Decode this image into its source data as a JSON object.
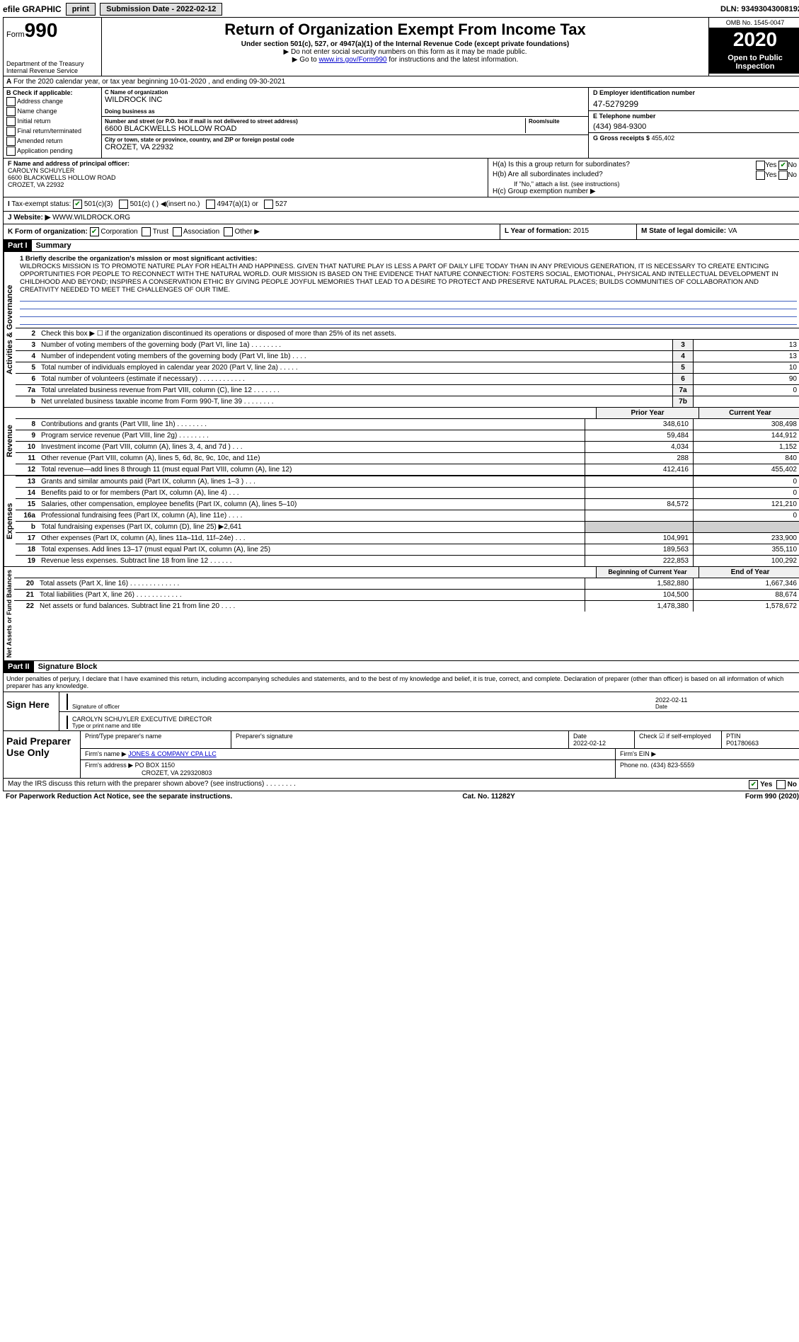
{
  "topbar": {
    "efile": "efile GRAPHIC",
    "print": "print",
    "submission": "Submission Date - 2022-02-12",
    "dln": "DLN: 93493043008192"
  },
  "header": {
    "form_prefix": "Form",
    "form_number": "990",
    "dept": "Department of the Treasury\nInternal Revenue Service",
    "title": "Return of Organization Exempt From Income Tax",
    "sub1": "Under section 501(c), 527, or 4947(a)(1) of the Internal Revenue Code (except private foundations)",
    "sub2": "▶ Do not enter social security numbers on this form as it may be made public.",
    "sub3_pre": "▶ Go to ",
    "sub3_link": "www.irs.gov/Form990",
    "sub3_post": " for instructions and the latest information.",
    "omb": "OMB No. 1545-0047",
    "year": "2020",
    "inspection": "Open to Public Inspection"
  },
  "rowA": "For the 2020 calendar year, or tax year beginning 10-01-2020    , and ending 09-30-2021",
  "colB": {
    "header": "B Check if applicable:",
    "items": [
      "Address change",
      "Name change",
      "Initial return",
      "Final return/terminated",
      "Amended return",
      "Application pending"
    ]
  },
  "colC": {
    "name_lbl": "C Name of organization",
    "name": "WILDROCK INC",
    "dba_lbl": "Doing business as",
    "dba": "",
    "addr_lbl": "Number and street (or P.O. box if mail is not delivered to street address)",
    "addr": "6600 BLACKWELLS HOLLOW ROAD",
    "room_lbl": "Room/suite",
    "city_lbl": "City or town, state or province, country, and ZIP or foreign postal code",
    "city": "CROZET, VA  22932"
  },
  "colD": {
    "d_lbl": "D Employer identification number",
    "d_val": "47-5279299",
    "e_lbl": "E Telephone number",
    "e_val": "(434) 984-9300",
    "g_lbl": "G Gross receipts $",
    "g_val": "455,402"
  },
  "rowF": {
    "lbl": "F  Name and address of principal officer:",
    "name": "CAROLYN SCHUYLER",
    "addr1": "6600 BLACKWELLS HOLLOW ROAD",
    "addr2": "CROZET, VA  22932"
  },
  "rowH": {
    "ha": "H(a)  Is this a group return for subordinates?",
    "hb": "H(b)  Are all subordinates included?",
    "hb_note": "If \"No,\" attach a list. (see instructions)",
    "hc": "H(c)  Group exemption number ▶",
    "yes": "Yes",
    "no": "No"
  },
  "rowI": {
    "lbl": "Tax-exempt status:",
    "opt1": "501(c)(3)",
    "opt2": "501(c) (  ) ◀(insert no.)",
    "opt3": "4947(a)(1) or",
    "opt4": "527"
  },
  "rowJ": {
    "lbl": "J  Website: ▶",
    "val": "WWW.WILDROCK.ORG"
  },
  "rowK": {
    "lbl": "K Form of organization:",
    "opts": [
      "Corporation",
      "Trust",
      "Association",
      "Other ▶"
    ],
    "l_lbl": "L Year of formation:",
    "l_val": "2015",
    "m_lbl": "M State of legal domicile:",
    "m_val": "VA"
  },
  "part1": {
    "header": "Part I",
    "title": "Summary",
    "side_gov": "Activities & Governance",
    "side_rev": "Revenue",
    "side_exp": "Expenses",
    "side_net": "Net Assets or Fund Balances",
    "line1_lbl": "1  Briefly describe the organization's mission or most significant activities:",
    "mission": "WILDROCKS MISSION IS TO PROMOTE NATURE PLAY FOR HEALTH AND HAPPINESS. GIVEN THAT NATURE PLAY IS LESS A PART OF DAILY LIFE TODAY THAN IN ANY PREVIOUS GENERATION, IT IS NECESSARY TO CREATE ENTICING OPPORTUNITIES FOR PEOPLE TO RECONNECT WITH THE NATURAL WORLD. OUR MISSION IS BASED ON THE EVIDENCE THAT NATURE CONNECTION: FOSTERS SOCIAL, EMOTIONAL, PHYSICAL AND INTELLECTUAL DEVELOPMENT IN CHILDHOOD AND BEYOND; INSPIRES A CONSERVATION ETHIC BY GIVING PEOPLE JOYFUL MEMORIES THAT LEAD TO A DESIRE TO PROTECT AND PRESERVE NATURAL PLACES; BUILDS COMMUNITIES OF COLLABORATION AND CREATIVITY NEEDED TO MEET THE CHALLENGES OF OUR TIME.",
    "line2": "Check this box ▶ ☐ if the organization discontinued its operations or disposed of more than 25% of its net assets.",
    "gov_lines": [
      {
        "n": "3",
        "d": "Number of voting members of the governing body (Part VI, line 1a)   .   .   .   .   .   .   .   .",
        "box": "3",
        "v": "13"
      },
      {
        "n": "4",
        "d": "Number of independent voting members of the governing body (Part VI, line 1b)  .   .   .   .",
        "box": "4",
        "v": "13"
      },
      {
        "n": "5",
        "d": "Total number of individuals employed in calendar year 2020 (Part V, line 2a)  .   .   .   .   .",
        "box": "5",
        "v": "10"
      },
      {
        "n": "6",
        "d": "Total number of volunteers (estimate if necessary)   .   .   .   .   .   .   .   .   .   .   .   .",
        "box": "6",
        "v": "90"
      },
      {
        "n": "7a",
        "d": "Total unrelated business revenue from Part VIII, column (C), line 12   .   .   .   .   .   .   .",
        "box": "7a",
        "v": "0"
      },
      {
        "n": "b",
        "d": "Net unrelated business taxable income from Form 990-T, line 39   .   .   .   .   .   .   .   .",
        "box": "7b",
        "v": ""
      }
    ],
    "hdr_prior": "Prior Year",
    "hdr_current": "Current Year",
    "rev_lines": [
      {
        "n": "8",
        "d": "Contributions and grants (Part VIII, line 1h)   .   .   .   .   .   .   .   .",
        "p": "348,610",
        "c": "308,498"
      },
      {
        "n": "9",
        "d": "Program service revenue (Part VIII, line 2g)   .   .   .   .   .   .   .   .",
        "p": "59,484",
        "c": "144,912"
      },
      {
        "n": "10",
        "d": "Investment income (Part VIII, column (A), lines 3, 4, and 7d )   .   .   .",
        "p": "4,034",
        "c": "1,152"
      },
      {
        "n": "11",
        "d": "Other revenue (Part VIII, column (A), lines 5, 6d, 8c, 9c, 10c, and 11e)",
        "p": "288",
        "c": "840"
      },
      {
        "n": "12",
        "d": "Total revenue—add lines 8 through 11 (must equal Part VIII, column (A), line 12)",
        "p": "412,416",
        "c": "455,402"
      }
    ],
    "exp_lines": [
      {
        "n": "13",
        "d": "Grants and similar amounts paid (Part IX, column (A), lines 1–3 )   .   .   .",
        "p": "",
        "c": "0"
      },
      {
        "n": "14",
        "d": "Benefits paid to or for members (Part IX, column (A), line 4)   .   .   .",
        "p": "",
        "c": "0"
      },
      {
        "n": "15",
        "d": "Salaries, other compensation, employee benefits (Part IX, column (A), lines 5–10)",
        "p": "84,572",
        "c": "121,210"
      },
      {
        "n": "16a",
        "d": "Professional fundraising fees (Part IX, column (A), line 11e)   .   .   .   .",
        "p": "",
        "c": "0"
      },
      {
        "n": "b",
        "d": "Total fundraising expenses (Part IX, column (D), line 25) ▶2,641",
        "p": "shaded",
        "c": "shaded"
      },
      {
        "n": "17",
        "d": "Other expenses (Part IX, column (A), lines 11a–11d, 11f–24e)   .   .   .",
        "p": "104,991",
        "c": "233,900"
      },
      {
        "n": "18",
        "d": "Total expenses. Add lines 13–17 (must equal Part IX, column (A), line 25)",
        "p": "189,563",
        "c": "355,110"
      },
      {
        "n": "19",
        "d": "Revenue less expenses. Subtract line 18 from line 12   .   .   .   .   .   .",
        "p": "222,853",
        "c": "100,292"
      }
    ],
    "hdr_begin": "Beginning of Current Year",
    "hdr_end": "End of Year",
    "net_lines": [
      {
        "n": "20",
        "d": "Total assets (Part X, line 16)   .   .   .   .   .   .   .   .   .   .   .   .   .",
        "p": "1,582,880",
        "c": "1,667,346"
      },
      {
        "n": "21",
        "d": "Total liabilities (Part X, line 26)   .   .   .   .   .   .   .   .   .   .   .   .",
        "p": "104,500",
        "c": "88,674"
      },
      {
        "n": "22",
        "d": "Net assets or fund balances. Subtract line 21 from line 20   .   .   .   .",
        "p": "1,478,380",
        "c": "1,578,672"
      }
    ]
  },
  "part2": {
    "header": "Part II",
    "title": "Signature Block",
    "penalty": "Under penalties of perjury, I declare that I have examined this return, including accompanying schedules and statements, and to the best of my knowledge and belief, it is true, correct, and complete. Declaration of preparer (other than officer) is based on all information of which preparer has any knowledge."
  },
  "sign": {
    "label": "Sign Here",
    "sig_lbl": "Signature of officer",
    "date_lbl": "Date",
    "date_val": "2022-02-11",
    "name": "CAROLYN SCHUYLER  EXECUTIVE DIRECTOR",
    "name_lbl": "Type or print name and title"
  },
  "prep": {
    "label": "Paid Preparer Use Only",
    "h1": "Print/Type preparer's name",
    "h2": "Preparer's signature",
    "h3": "Date",
    "h3v": "2022-02-12",
    "h4": "Check ☑ if self-employed",
    "h5": "PTIN",
    "h5v": "P01780663",
    "firm_lbl": "Firm's name    ▶",
    "firm": "JONES & COMPANY CPA LLC",
    "ein_lbl": "Firm's EIN ▶",
    "addr_lbl": "Firm's address ▶",
    "addr": "PO BOX 1150",
    "addr2": "CROZET, VA  229320803",
    "phone_lbl": "Phone no.",
    "phone": "(434) 823-5559"
  },
  "bottom": {
    "q": "May the IRS discuss this return with the preparer shown above? (see instructions)   .   .   .   .   .   .   .   .",
    "yes": "Yes",
    "no": "No"
  },
  "footer": {
    "left": "For Paperwork Reduction Act Notice, see the separate instructions.",
    "mid": "Cat. No. 11282Y",
    "right": "Form 990 (2020)"
  },
  "colors": {
    "link": "#0000cc",
    "check": "#008000",
    "blueline": "#4060c0"
  }
}
